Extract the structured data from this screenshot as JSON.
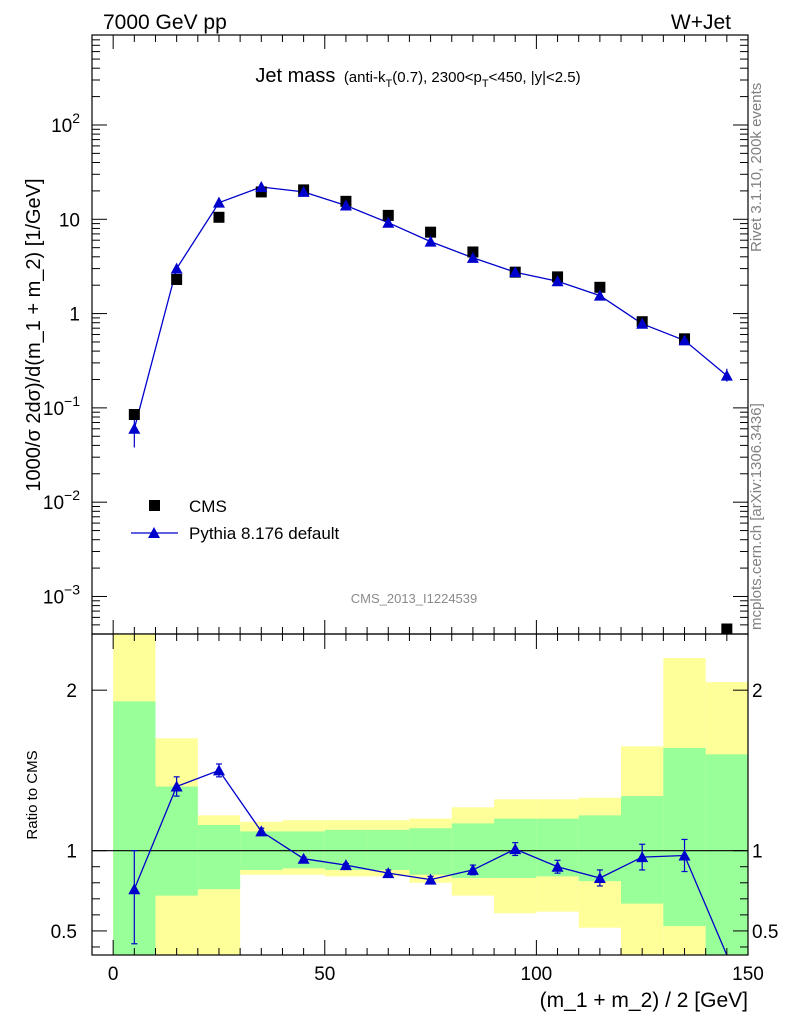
{
  "header": {
    "left": "7000 GeV pp",
    "right": "W+Jet"
  },
  "side": {
    "rivet": "Rivet 3.1.10,  200k events",
    "site": "mcplots.cern.ch [arXiv:1306.3436]"
  },
  "analysis_id": "CMS_2013_I1224539",
  "chart_data": [
    {
      "panel": "main",
      "type": "scatter",
      "title": {
        "main": "Jet mass",
        "detail": "(anti-k_T(0.7), 2300<p_T<450, |y|<2.5)",
        "detail_parts": [
          "(anti-k",
          "T",
          "(0.7), 2300<p",
          "T",
          "<450, |y|<2.5)"
        ]
      },
      "ylabel": "1000/σ 2dσ)/d(m_1 + m_2) [1/GeV]",
      "yscale": "log",
      "ylim": [
        0.0004,
        900
      ],
      "xlim": [
        -5,
        150
      ],
      "ytick_labels": [
        "10^-3",
        "10^-2",
        "10^-1",
        "1",
        "10",
        "10^2"
      ],
      "ytick_parts": [
        {
          "base": "10",
          "exp": "−3"
        },
        {
          "base": "10",
          "exp": "−2"
        },
        {
          "base": "10",
          "exp": "−1"
        },
        {
          "base": "1",
          "exp": ""
        },
        {
          "base": "10",
          "exp": ""
        },
        {
          "base": "10",
          "exp": "2"
        }
      ],
      "legend_position": "bottom-left",
      "series": [
        {
          "name": "CMS",
          "marker": "square",
          "color": "#000000",
          "x": [
            5,
            15,
            25,
            35,
            45,
            55,
            65,
            75,
            85,
            95,
            105,
            115,
            125,
            135,
            145
          ],
          "y": [
            0.085,
            2.3,
            10.5,
            19.5,
            20.5,
            15.5,
            11,
            7.3,
            4.5,
            2.75,
            2.45,
            1.9,
            0.82,
            0.54,
            0.00043
          ]
        },
        {
          "name": "Pythia 8.176 default",
          "marker": "triangle",
          "color": "#0000cc",
          "x": [
            5,
            15,
            25,
            35,
            45,
            55,
            65,
            75,
            85,
            95,
            105,
            115,
            125,
            135,
            145
          ],
          "y": [
            0.06,
            3.0,
            15.0,
            22.0,
            19.5,
            14.0,
            9.2,
            5.8,
            3.9,
            2.75,
            2.2,
            1.55,
            0.78,
            0.52,
            0.22
          ],
          "err_low": [
            0.038,
            2.8,
            14.3,
            21.3,
            19.0,
            13.5,
            8.9,
            5.6,
            3.75,
            2.65,
            2.1,
            1.48,
            0.74,
            0.49,
            0.19
          ],
          "err_high": [
            0.085,
            3.2,
            15.7,
            22.7,
            20.0,
            14.5,
            9.5,
            6.0,
            4.05,
            2.85,
            2.3,
            1.62,
            0.82,
            0.55,
            0.26
          ]
        }
      ]
    },
    {
      "panel": "ratio",
      "type": "line",
      "ylabel": "Ratio to CMS",
      "xlabel": "(m_1 + m_2) / 2 [GeV]",
      "xlim": [
        -5,
        150
      ],
      "ylim": [
        0.35,
        2.35
      ],
      "xtick_labels": [
        "0",
        "50",
        "100",
        "150"
      ],
      "ytick_labels": [
        "0.5",
        "1",
        "2"
      ],
      "reference_line": 1,
      "bands": {
        "bins": [
          [
            0,
            10
          ],
          [
            10,
            20
          ],
          [
            20,
            30
          ],
          [
            30,
            40
          ],
          [
            40,
            50
          ],
          [
            50,
            60
          ],
          [
            60,
            70
          ],
          [
            70,
            80
          ],
          [
            80,
            90
          ],
          [
            90,
            100
          ],
          [
            100,
            110
          ],
          [
            110,
            120
          ],
          [
            120,
            130
          ],
          [
            130,
            140
          ],
          [
            140,
            150
          ]
        ],
        "yellow": [
          [
            0.3,
            2.4
          ],
          [
            0.3,
            1.7
          ],
          [
            0.3,
            1.22
          ],
          [
            0.85,
            1.18
          ],
          [
            0.85,
            1.19
          ],
          [
            0.84,
            1.19
          ],
          [
            0.84,
            1.19
          ],
          [
            0.8,
            1.2
          ],
          [
            0.72,
            1.27
          ],
          [
            0.61,
            1.32
          ],
          [
            0.62,
            1.32
          ],
          [
            0.52,
            1.33
          ],
          [
            0.3,
            1.65
          ],
          [
            0.3,
            2.2
          ],
          [
            0.3,
            2.05
          ]
        ],
        "green": [
          [
            0.3,
            1.93
          ],
          [
            0.72,
            1.4
          ],
          [
            0.76,
            1.16
          ],
          [
            0.88,
            1.12
          ],
          [
            0.89,
            1.12
          ],
          [
            0.88,
            1.13
          ],
          [
            0.88,
            1.13
          ],
          [
            0.85,
            1.14
          ],
          [
            0.83,
            1.17
          ],
          [
            0.83,
            1.2
          ],
          [
            0.84,
            1.2
          ],
          [
            0.81,
            1.22
          ],
          [
            0.67,
            1.34
          ],
          [
            0.53,
            1.64
          ],
          [
            0.3,
            1.6
          ]
        ],
        "yellow_color": "#ffff99",
        "green_color": "#99ff99"
      },
      "series": [
        {
          "name": "Pythia 8.176 default",
          "marker": "triangle",
          "color": "#0000cc",
          "x": [
            5,
            15,
            25,
            35,
            45,
            55,
            65,
            75,
            85,
            95,
            105,
            115,
            125,
            135,
            145
          ],
          "y": [
            0.76,
            1.4,
            1.5,
            1.12,
            0.95,
            0.91,
            0.86,
            0.82,
            0.88,
            1.01,
            0.9,
            0.83,
            0.96,
            0.97,
            0.2
          ],
          "err_low": [
            0.42,
            1.34,
            1.46,
            1.1,
            0.94,
            0.9,
            0.84,
            0.8,
            0.85,
            0.97,
            0.86,
            0.78,
            0.88,
            0.87,
            0.2
          ],
          "err_high": [
            1.0,
            1.46,
            1.54,
            1.14,
            0.96,
            0.92,
            0.88,
            0.84,
            0.91,
            1.05,
            0.94,
            0.88,
            1.04,
            1.07,
            0.2
          ]
        }
      ]
    }
  ]
}
